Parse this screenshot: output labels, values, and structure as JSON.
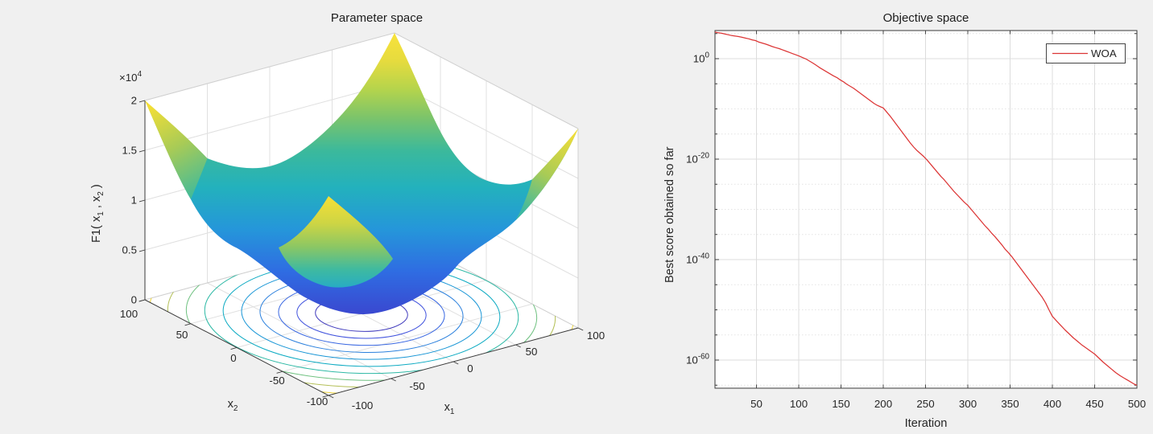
{
  "figure": {
    "type": "matlab-figure"
  },
  "left_plot": {
    "title": "Parameter space",
    "z_exp": {
      "base": "×10",
      "exp": "4"
    },
    "zlabel": {
      "p1": "F1( x",
      "s1": "1",
      "p2": " , x",
      "s2": "2",
      "p3": " )"
    },
    "x1_label": {
      "base": "x",
      "sub": "1"
    },
    "x2_label": {
      "base": "x",
      "sub": "2"
    },
    "z_ticks": [
      "2",
      "1.5",
      "1",
      "0.5",
      "0"
    ],
    "x1_ticks": [
      "-100",
      "-50",
      "0",
      "50",
      "100"
    ],
    "x2_ticks": [
      "100",
      "50",
      "0",
      "-50",
      "-100"
    ],
    "contours": {
      "radii": [
        30,
        42,
        54,
        66,
        78,
        90,
        102,
        114,
        126,
        138
      ],
      "colors": [
        "#403bbd",
        "#3f51dd",
        "#3a68e2",
        "#2b80dd",
        "#1996d6",
        "#0caac2",
        "#2bb8a4",
        "#6fc180",
        "#b3bf56",
        "#ecd33a"
      ]
    }
  },
  "right_plot": {
    "title": "Objective space",
    "xlabel": "Iteration",
    "ylabel": "Best score obtained so far",
    "x_ticks": [
      "50",
      "100",
      "150",
      "200",
      "250",
      "300",
      "350",
      "400",
      "450",
      "500"
    ],
    "y_tick_base": "10",
    "y_tick_exponents": [
      "0",
      "-20",
      "-40",
      "-60"
    ],
    "legend": {
      "label": "WOA"
    }
  },
  "colors": {
    "background": "#f0f0f0",
    "wall": "#ffffff",
    "wall_grid": "#e0e0e0",
    "light_edge": "#cfcfcf",
    "axis_dark": "#3a3a3a",
    "grid_major": "#dcdcdc",
    "grid_minor": "#e4e4e4",
    "text": "#262626",
    "curve_red": "#dc3535",
    "surface_gradient": [
      "#f8e23b",
      "#e6db3e",
      "#b5d44c",
      "#7cc46a",
      "#3bb99c",
      "#23b1bd",
      "#2596da",
      "#2f6ce2",
      "#3a48d0"
    ]
  },
  "chart_data": [
    {
      "type": "surface",
      "title": "Parameter space",
      "function_label": "F1( x1 , x2 )",
      "function": "F1 = x1^2 + x2^2",
      "x1_range": [
        -100,
        100
      ],
      "x2_range": [
        -100,
        100
      ],
      "z_range": [
        0,
        20000
      ],
      "z_tick_values": [
        0,
        5000,
        10000,
        15000,
        20000
      ],
      "colormap": "parula",
      "description": "3D bowl-shaped sphere benchmark surface with yellow peaks at the four domain corners (z=20000) and blue minimum at the center (z=0); projected contour rings of constant z=r^2 drawn on the floor plane.",
      "contour_levels_z": [
        900,
        1764,
        2916,
        4356,
        6084,
        8100,
        10404,
        12996,
        15876,
        19044
      ]
    },
    {
      "type": "line",
      "title": "Objective space",
      "xlabel": "Iteration",
      "ylabel": "Best score obtained so far",
      "yscale": "log",
      "xlim": [
        1,
        500
      ],
      "ytick_exponents": [
        0,
        -20,
        -40,
        -60
      ],
      "legend_position": "top-right",
      "series": [
        {
          "name": "WOA",
          "points_iteration_log10score": [
            [
              1,
              5.3
            ],
            [
              5,
              5.15
            ],
            [
              9,
              5.05
            ],
            [
              13,
              4.9
            ],
            [
              17,
              4.75
            ],
            [
              21,
              4.6
            ],
            [
              25,
              4.5
            ],
            [
              29,
              4.4
            ],
            [
              33,
              4.25
            ],
            [
              37,
              4.1
            ],
            [
              41,
              3.95
            ],
            [
              45,
              3.75
            ],
            [
              49,
              3.6
            ],
            [
              53,
              3.3
            ],
            [
              57,
              3.1
            ],
            [
              61,
              2.9
            ],
            [
              65,
              2.65
            ],
            [
              69,
              2.4
            ],
            [
              73,
              2.2
            ],
            [
              77,
              2.0
            ],
            [
              81,
              1.75
            ],
            [
              85,
              1.5
            ],
            [
              89,
              1.25
            ],
            [
              93,
              1.0
            ],
            [
              97,
              0.75
            ],
            [
              101,
              0.5
            ],
            [
              105,
              0.2
            ],
            [
              109,
              -0.1
            ],
            [
              113,
              -0.5
            ],
            [
              117,
              -0.9
            ],
            [
              121,
              -1.35
            ],
            [
              125,
              -1.8
            ],
            [
              129,
              -2.2
            ],
            [
              133,
              -2.6
            ],
            [
              137,
              -3.0
            ],
            [
              141,
              -3.4
            ],
            [
              145,
              -3.75
            ],
            [
              149,
              -4.2
            ],
            [
              153,
              -4.6
            ],
            [
              157,
              -5.1
            ],
            [
              161,
              -5.5
            ],
            [
              165,
              -5.9
            ],
            [
              169,
              -6.4
            ],
            [
              173,
              -6.9
            ],
            [
              177,
              -7.4
            ],
            [
              181,
              -7.9
            ],
            [
              185,
              -8.4
            ],
            [
              189,
              -8.9
            ],
            [
              193,
              -9.3
            ],
            [
              197,
              -9.6
            ],
            [
              200,
              -9.8
            ],
            [
              204,
              -10.6
            ],
            [
              208,
              -11.4
            ],
            [
              212,
              -12.3
            ],
            [
              216,
              -13.2
            ],
            [
              220,
              -14.1
            ],
            [
              224,
              -15.0
            ],
            [
              228,
              -15.9
            ],
            [
              232,
              -16.8
            ],
            [
              236,
              -17.6
            ],
            [
              240,
              -18.3
            ],
            [
              244,
              -18.9
            ],
            [
              248,
              -19.5
            ],
            [
              252,
              -20.2
            ],
            [
              256,
              -21.0
            ],
            [
              260,
              -21.8
            ],
            [
              264,
              -22.6
            ],
            [
              268,
              -23.4
            ],
            [
              272,
              -24.1
            ],
            [
              276,
              -24.9
            ],
            [
              280,
              -25.7
            ],
            [
              284,
              -26.5
            ],
            [
              288,
              -27.2
            ],
            [
              292,
              -27.9
            ],
            [
              296,
              -28.6
            ],
            [
              300,
              -29.2
            ],
            [
              304,
              -30.0
            ],
            [
              308,
              -30.8
            ],
            [
              312,
              -31.6
            ],
            [
              316,
              -32.4
            ],
            [
              320,
              -33.2
            ],
            [
              324,
              -33.9
            ],
            [
              328,
              -34.7
            ],
            [
              332,
              -35.4
            ],
            [
              336,
              -36.2
            ],
            [
              340,
              -37.0
            ],
            [
              344,
              -37.9
            ],
            [
              348,
              -38.6
            ],
            [
              352,
              -39.4
            ],
            [
              356,
              -40.3
            ],
            [
              360,
              -41.2
            ],
            [
              364,
              -42.1
            ],
            [
              368,
              -43.0
            ],
            [
              372,
              -43.9
            ],
            [
              376,
              -44.8
            ],
            [
              380,
              -45.7
            ],
            [
              384,
              -46.6
            ],
            [
              388,
              -47.5
            ],
            [
              392,
              -48.6
            ],
            [
              396,
              -50.0
            ],
            [
              400,
              -51.3
            ],
            [
              405,
              -52.2
            ],
            [
              410,
              -53.1
            ],
            [
              415,
              -54.0
            ],
            [
              420,
              -54.8
            ],
            [
              425,
              -55.6
            ],
            [
              430,
              -56.3
            ],
            [
              435,
              -57.0
            ],
            [
              440,
              -57.6
            ],
            [
              445,
              -58.2
            ],
            [
              450,
              -58.8
            ],
            [
              455,
              -59.6
            ],
            [
              460,
              -60.4
            ],
            [
              465,
              -61.1
            ],
            [
              470,
              -61.8
            ],
            [
              475,
              -62.5
            ],
            [
              480,
              -63.1
            ],
            [
              485,
              -63.6
            ],
            [
              490,
              -64.1
            ],
            [
              494,
              -64.5
            ],
            [
              497,
              -64.8
            ],
            [
              500,
              -65.0
            ]
          ]
        }
      ]
    }
  ]
}
